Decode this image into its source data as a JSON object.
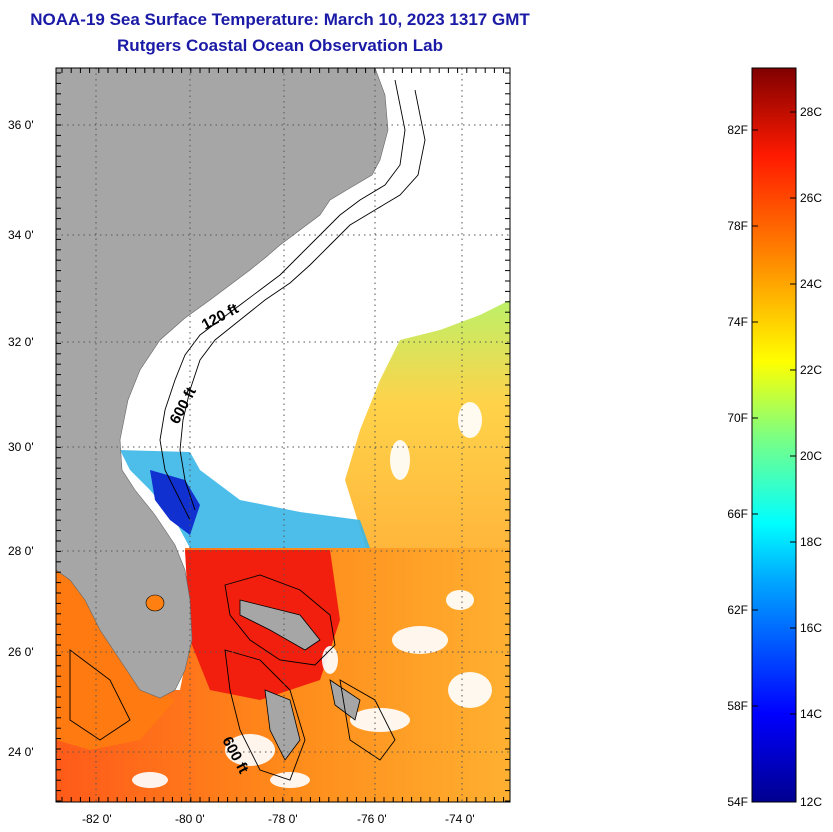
{
  "title": "NOAA-19 Sea Surface Temperature:  March 10, 2023 1317 GMT",
  "subtitle": "Rutgers Coastal Ocean Observation Lab",
  "lat_labels": [
    "36 0'",
    "34 0'",
    "32 0'",
    "30 0'",
    "28 0'",
    "26 0'",
    "24 0'"
  ],
  "lon_labels": [
    "-82 0'",
    "-80 0'",
    "-78 0'",
    "-76 0'",
    "-74 0'"
  ],
  "contour_labels": {
    "c120": "120 ft",
    "c600a": "600 ft",
    "c600b": "600 ft"
  },
  "colorbar": {
    "fahrenheit": [
      "82F",
      "78F",
      "74F",
      "70F",
      "66F",
      "62F",
      "58F",
      "54F"
    ],
    "celsius": [
      "28C",
      "26C",
      "24C",
      "22C",
      "20C",
      "18C",
      "16C",
      "14C",
      "12C"
    ]
  },
  "colors": {
    "land": "#a6a6a6",
    "title": "#1a1aa6"
  }
}
